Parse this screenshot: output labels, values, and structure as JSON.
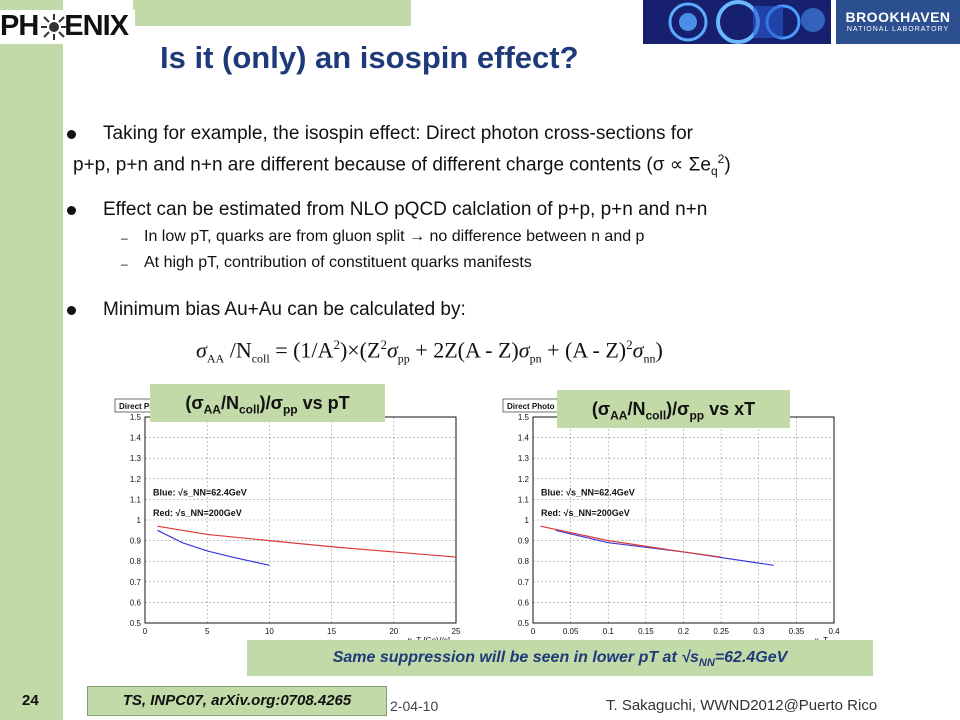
{
  "header": {
    "logo_text_left": "PH",
    "logo_text_right": "ENIX",
    "bnl_line1": "BROOKHAVEN",
    "bnl_line2": "NATIONAL LABORATORY"
  },
  "title": "Is it (only) an isospin effect?",
  "bullets": {
    "b1_line1": "Taking for example, the isospin effect: Direct photon cross-sections for",
    "b1_line2_a": "p+p, p+n and n+n are different because of different charge contents (",
    "b1_line2_sigma": "σ",
    "b1_line2_prop": "∝",
    "b1_line2_sum": "Σe",
    "b1_line2_sub": "q",
    "b1_line2_sup": "2",
    "b1_line2_close": ")",
    "b2": "Effect can be estimated from NLO pQCD calclation of p+p, p+n and n+n",
    "b2_sub1_a": "In low pT, quarks are from gluon split",
    "b2_sub1_arrow": "→",
    "b2_sub1_b": "no difference between n and p",
    "b2_sub2": "At high pT, contribution of constituent quarks manifests",
    "b3": "Minimum bias Au+Au can be calculated by:",
    "dash": "–"
  },
  "equation": {
    "lhs": "σ",
    "lhs_sub": "AA",
    "slash": " /N",
    "ncoll": "coll",
    "eq": " = (1/A",
    "sq1": "2",
    "mid1": ")×(Z",
    "sq2": "2",
    "sig_pp": "σ",
    "pp": "pp",
    "mid2": " + 2Z(A - Z)",
    "sig_pn": "σ",
    "pn": "pn",
    "mid3": " + (A - Z)",
    "sq3": "2",
    "sig_nn": "σ",
    "nn": "nn",
    "end": ")"
  },
  "label_left": {
    "a": "(σ",
    "b": "AA",
    "c": "/N",
    "d": "coll",
    "e": ")/σ",
    "f": "pp",
    "g": " vs pT"
  },
  "label_right": {
    "a": "(σ",
    "b": "AA",
    "c": "/N",
    "d": "coll",
    "e": ")/σ",
    "f": "pp",
    "g": " vs xT"
  },
  "footnote": {
    "a": "Same suppression will be seen in lower pT at ",
    "sqrt": "√",
    "s": "s",
    "sub": "NN",
    "b": "=62.4GeV"
  },
  "citation": "TS, INPC07, arXiv.org:0708.4265",
  "footer": {
    "page": "24",
    "date": "2-04-10",
    "author": "T. Sakaguchi, WWND2012@Puerto Rico"
  },
  "colors": {
    "green": "#c2d9a8",
    "title": "#1f3a7a",
    "blue_series": "#3a3adc",
    "red_series": "#dc3a3a"
  },
  "chart_data": [
    {
      "type": "line",
      "title": "Direct Ph",
      "xlabel": "p_T [GeV/c]",
      "xlim": [
        0,
        25
      ],
      "ylim": [
        0.5,
        1.5
      ],
      "x_ticks": [
        0,
        5,
        10,
        15,
        20,
        25
      ],
      "y_ticks": [
        0.5,
        0.6,
        0.7,
        0.8,
        0.9,
        1,
        1.1,
        1.2,
        1.3,
        1.4,
        1.5
      ],
      "legend_blue": "Blue: √s_NN=62.4GeV",
      "legend_red": "Red: √s_NN=200GeV",
      "series": [
        {
          "color": "blue",
          "x": [
            1,
            3,
            5,
            7,
            10
          ],
          "y": [
            0.95,
            0.89,
            0.85,
            0.82,
            0.78
          ]
        },
        {
          "color": "red",
          "x": [
            1,
            5,
            10,
            15,
            20,
            25
          ],
          "y": [
            0.97,
            0.93,
            0.9,
            0.87,
            0.845,
            0.82
          ]
        }
      ]
    },
    {
      "type": "line",
      "title": "Direct Photo",
      "xlabel": "x_T",
      "xlim": [
        0,
        0.4
      ],
      "ylim": [
        0.5,
        1.5
      ],
      "x_ticks": [
        0,
        0.05,
        0.1,
        0.15,
        0.2,
        0.25,
        0.3,
        0.35,
        0.4
      ],
      "y_ticks": [
        0.5,
        0.6,
        0.7,
        0.8,
        0.9,
        1,
        1.1,
        1.2,
        1.3,
        1.4,
        1.5
      ],
      "legend_blue": "Blue: √s_NN=62.4GeV",
      "legend_red": "Red: √s_NN=200GeV",
      "series": [
        {
          "color": "blue",
          "x": [
            0.03,
            0.1,
            0.2,
            0.32
          ],
          "y": [
            0.95,
            0.89,
            0.845,
            0.78
          ]
        },
        {
          "color": "red",
          "x": [
            0.01,
            0.1,
            0.2,
            0.25
          ],
          "y": [
            0.97,
            0.9,
            0.845,
            0.82
          ]
        }
      ]
    }
  ]
}
